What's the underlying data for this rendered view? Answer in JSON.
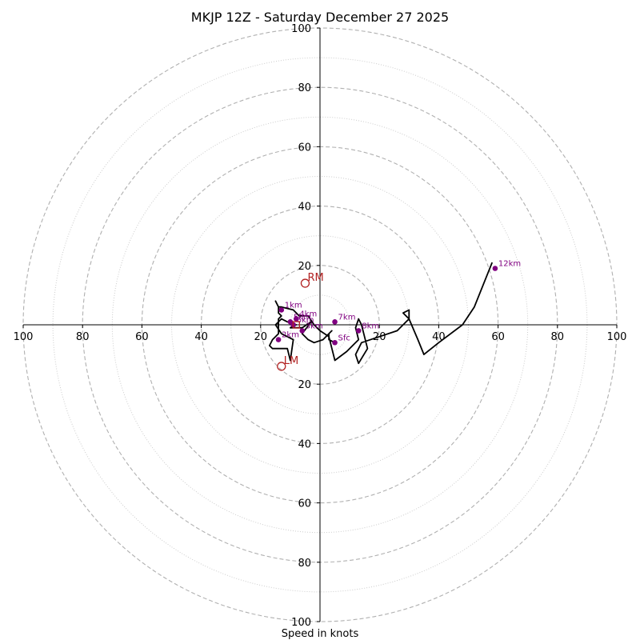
{
  "chart_data": {
    "type": "hodograph",
    "title": "MKJP 12Z - Saturday December 27 2025",
    "xlabel": "Speed in knots",
    "range": 100,
    "ring_major": [
      20,
      40,
      60,
      80,
      100
    ],
    "ring_minor": [
      10,
      30,
      50,
      70,
      90
    ],
    "ticks": {
      "left": [
        "100",
        "80",
        "60",
        "40",
        "20"
      ],
      "right": [
        "20",
        "40",
        "60",
        "80",
        "100"
      ],
      "top": [
        "20",
        "40",
        "60",
        "80",
        "100"
      ],
      "bottom": [
        "20",
        "40",
        "60",
        "80",
        "100"
      ]
    },
    "colors": {
      "trace": "#000000",
      "heights": "#800080",
      "motion": "#b22222",
      "grid": "#b0b0b0"
    },
    "trace": [
      [
        5,
        -6
      ],
      [
        3,
        -5
      ],
      [
        3,
        -3
      ],
      [
        4,
        -2
      ],
      [
        1,
        -5
      ],
      [
        -2,
        -6
      ],
      [
        -4,
        -5
      ],
      [
        -6,
        -3
      ],
      [
        -3,
        1
      ],
      [
        -6,
        -1
      ],
      [
        -10,
        -1
      ],
      [
        -8,
        0
      ],
      [
        -11,
        1
      ],
      [
        -13,
        2
      ],
      [
        -15,
        0
      ],
      [
        -13,
        -3
      ],
      [
        -9,
        -5
      ],
      [
        -10,
        -12
      ],
      [
        -11,
        -8
      ],
      [
        -13,
        -8
      ],
      [
        -16,
        -8
      ],
      [
        -17,
        -7
      ],
      [
        -16,
        -5
      ],
      [
        -14,
        -3
      ],
      [
        -14,
        1
      ],
      [
        -14,
        2
      ],
      [
        -13,
        3
      ],
      [
        -14,
        4
      ],
      [
        -14,
        6
      ],
      [
        -15,
        8
      ],
      [
        -14,
        6
      ],
      [
        -13,
        6
      ],
      [
        -9,
        5
      ],
      [
        -7,
        3
      ],
      [
        -4,
        3
      ],
      [
        -2,
        0
      ],
      [
        0,
        -2
      ],
      [
        3,
        -4
      ],
      [
        5,
        -12
      ],
      [
        9,
        -9
      ],
      [
        12,
        -6
      ],
      [
        13,
        -5
      ],
      [
        12,
        -1
      ],
      [
        13,
        2
      ],
      [
        14,
        0
      ],
      [
        16,
        -8
      ],
      [
        13,
        -13
      ],
      [
        12,
        -10
      ],
      [
        13,
        -8
      ],
      [
        14,
        -6
      ],
      [
        20,
        -4
      ],
      [
        26,
        -2
      ],
      [
        30,
        2
      ],
      [
        30,
        5
      ],
      [
        28,
        4
      ],
      [
        30,
        2
      ],
      [
        33,
        -5
      ],
      [
        35,
        -10
      ],
      [
        40,
        -6
      ],
      [
        48,
        0
      ],
      [
        52,
        6
      ],
      [
        58,
        21
      ]
    ],
    "heights": [
      {
        "label": "Sfc",
        "u": 5,
        "v": -6
      },
      {
        "label": "1km",
        "u": -13,
        "v": 5
      },
      {
        "label": "2km",
        "u": -14,
        "v": -5
      },
      {
        "label": "3km",
        "u": -6,
        "v": -2
      },
      {
        "label": "4km",
        "u": -8,
        "v": 2
      },
      {
        "label": "5km",
        "u": -10,
        "v": 1
      },
      {
        "label": "6km",
        "u": -9,
        "v": 0
      },
      {
        "label": "7km",
        "u": 5,
        "v": 1
      },
      {
        "label": "8km",
        "u": 13,
        "v": -2
      },
      {
        "label": "12km",
        "u": 59,
        "v": 19
      }
    ],
    "motions": [
      {
        "label": "RM",
        "u": -5,
        "v": 14
      },
      {
        "label": "LM",
        "u": -13,
        "v": -14
      }
    ],
    "mean_wind": {
      "u": -8,
      "v": 0
    }
  }
}
